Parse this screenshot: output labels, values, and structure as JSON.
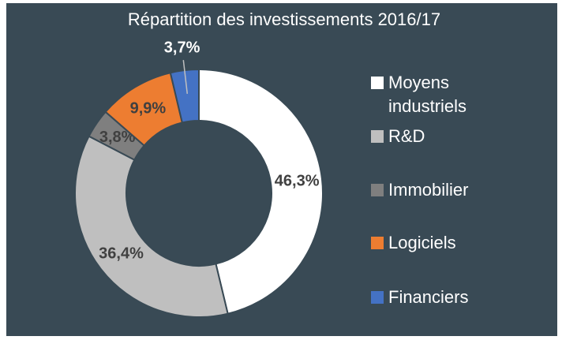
{
  "chart_data": {
    "type": "donut",
    "title": "Répartition des investissements 2016/17",
    "categories": [
      "Moyens industriels",
      "R&D",
      "Immobilier",
      "Logiciels",
      "Financiers"
    ],
    "values": [
      46.3,
      36.4,
      3.8,
      9.9,
      3.7
    ],
    "value_labels": [
      "46,3%",
      "36,4%",
      "3,8%",
      "9,9%",
      "3,7%"
    ],
    "colors": [
      "#ffffff",
      "#bfbfbf",
      "#7f7f7f",
      "#ed7d31",
      "#4472c4"
    ],
    "legend": "right"
  }
}
